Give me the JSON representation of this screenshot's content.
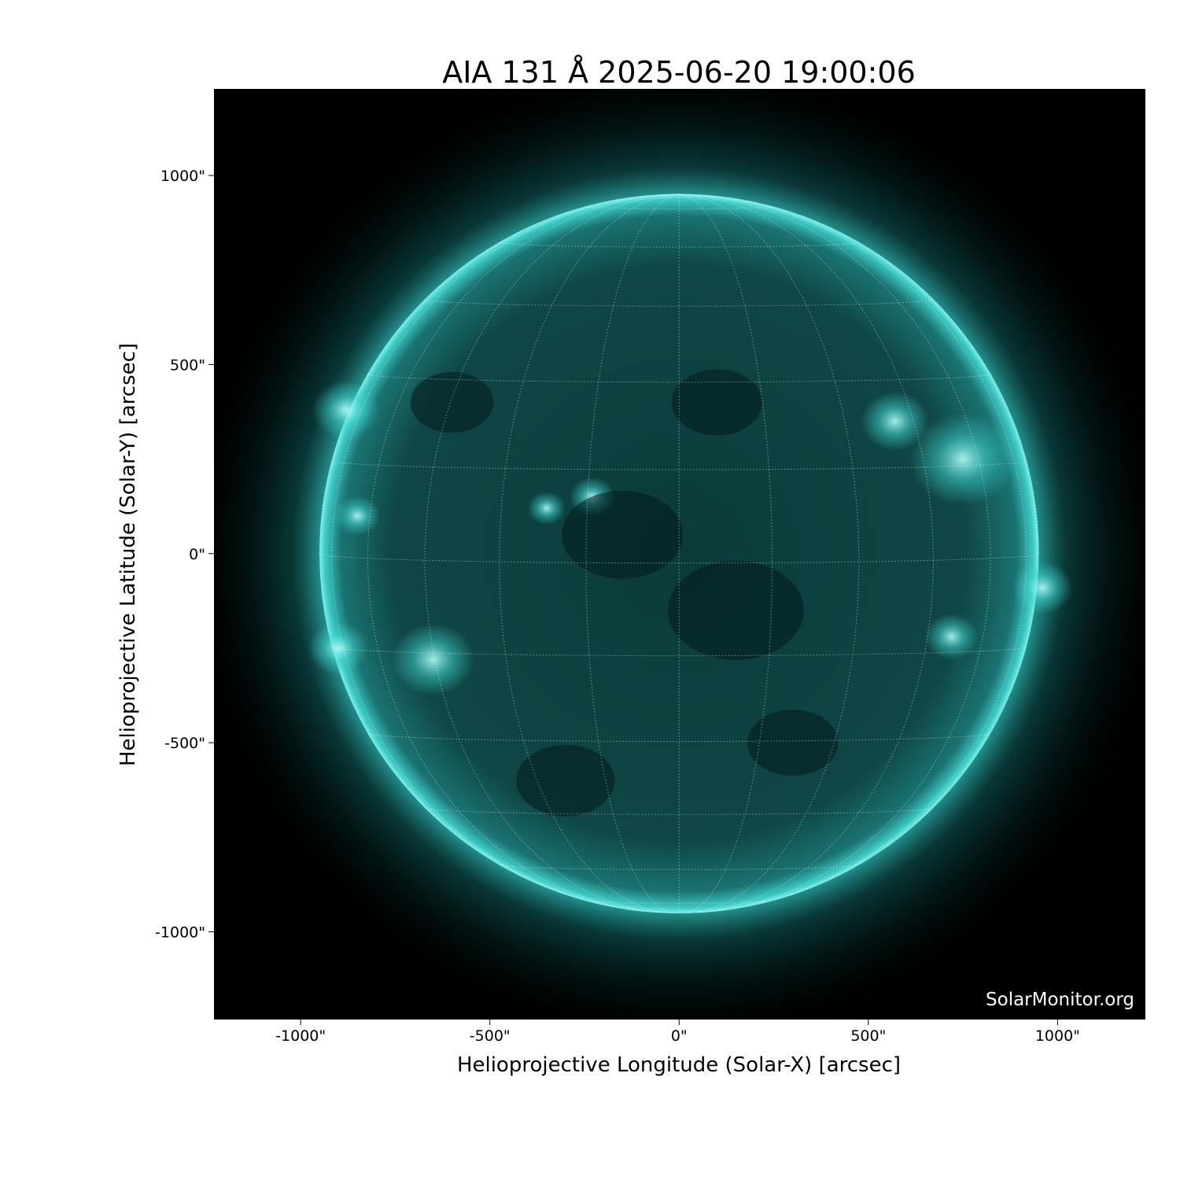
{
  "chart_data": {
    "type": "heatmap",
    "title": "AIA 131 Å 2025-06-20 19:00:06",
    "xlabel": "Helioprojective Longitude (Solar-X) [arcsec]",
    "ylabel": "Helioprojective Latitude (Solar-Y) [arcsec]",
    "xlim": [
      -1229,
      1232
    ],
    "ylim": [
      -1232,
      1229
    ],
    "xticks": [
      -1000,
      -500,
      0,
      500,
      1000
    ],
    "xtick_labels": [
      "-1000\"",
      "-500\"",
      "0\"",
      "500\"",
      "1000\""
    ],
    "yticks": [
      1000,
      500,
      0,
      -500,
      -1000
    ],
    "ytick_labels": [
      "1000\"",
      "500\"",
      "0\"",
      "-500\"",
      "-1000\""
    ],
    "solar_radius_arcsec": 950,
    "heliographic_grid_deg": 15,
    "grid": true,
    "colormap": "sdoaia131",
    "colors": {
      "background": "#000000",
      "disk": "#0a3b3b",
      "limb": "#3fd6d0",
      "bright": "#b8fff8"
    },
    "watermark": "SolarMonitor.org"
  }
}
